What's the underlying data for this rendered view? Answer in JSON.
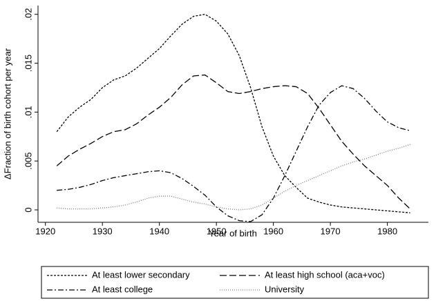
{
  "chart_data": {
    "type": "line",
    "xlabel": "Year of birth",
    "ylabel": "ΔFraction of birth cohort per year",
    "x": [
      1922,
      1924,
      1926,
      1928,
      1930,
      1932,
      1934,
      1936,
      1938,
      1940,
      1942,
      1944,
      1946,
      1948,
      1950,
      1952,
      1954,
      1956,
      1958,
      1960,
      1962,
      1964,
      1966,
      1968,
      1970,
      1972,
      1974,
      1976,
      1978,
      1980,
      1982,
      1984
    ],
    "series": [
      {
        "name": "At least lower secondary",
        "color": "#000000",
        "dash": "short",
        "values": [
          0.008,
          0.0095,
          0.0105,
          0.0113,
          0.0125,
          0.0133,
          0.0137,
          0.0145,
          0.0155,
          0.0165,
          0.0178,
          0.019,
          0.0198,
          0.02,
          0.0193,
          0.018,
          0.0158,
          0.0125,
          0.0085,
          0.0055,
          0.0035,
          0.0023,
          0.0012,
          0.0008,
          0.0005,
          0.0003,
          0.0002,
          0.0001,
          0,
          -0.0001,
          -0.0002,
          -0.0003
        ]
      },
      {
        "name": "At least high school (aca+voc)",
        "color": "#000000",
        "dash": "long",
        "values": [
          0.0045,
          0.0055,
          0.0062,
          0.0068,
          0.0075,
          0.008,
          0.0082,
          0.0088,
          0.0097,
          0.0105,
          0.0115,
          0.0128,
          0.0137,
          0.0138,
          0.013,
          0.0121,
          0.0119,
          0.0121,
          0.0124,
          0.0126,
          0.0127,
          0.0126,
          0.0119,
          0.0104,
          0.0087,
          0.007,
          0.0057,
          0.0045,
          0.0035,
          0.0025,
          0.0012,
          0.0001
        ]
      },
      {
        "name": "At least college",
        "color": "#000000",
        "dash": "dashdot",
        "values": [
          0.002,
          0.0021,
          0.0023,
          0.0026,
          0.003,
          0.0033,
          0.0035,
          0.0037,
          0.0039,
          0.004,
          0.0038,
          0.0032,
          0.0024,
          0.0015,
          0.0003,
          -0.0006,
          -0.0011,
          -0.0012,
          -0.0005,
          0.0012,
          0.0035,
          0.006,
          0.0085,
          0.0107,
          0.012,
          0.0127,
          0.0124,
          0.0114,
          0.0101,
          0.009,
          0.0084,
          0.0081
        ]
      },
      {
        "name": "University",
        "color": "#777777",
        "dash": "dot",
        "values": [
          0.0002,
          0.0001,
          0.0001,
          0.0001,
          0.0002,
          0.0003,
          0.0005,
          0.0008,
          0.0012,
          0.0014,
          0.0014,
          0.0011,
          0.0008,
          0.0006,
          0.0003,
          0.0001,
          0,
          0.0001,
          0.0005,
          0.0012,
          0.0019,
          0.0025,
          0.003,
          0.0035,
          0.004,
          0.0045,
          0.0049,
          0.0052,
          0.0056,
          0.006,
          0.0063,
          0.0067
        ]
      }
    ],
    "xlim": [
      1918.7,
      1987.2
    ],
    "ylim": [
      -0.00127,
      0.0209
    ],
    "xticks": [
      1920,
      1930,
      1940,
      1950,
      1960,
      1970,
      1980
    ],
    "yticks": [
      0,
      {
        "value": 0.005,
        "label": ".005"
      },
      {
        "value": 0.01,
        "label": ".01"
      },
      {
        "value": 0.015,
        "label": ".015"
      },
      {
        "value": 0.02,
        "label": ".02"
      }
    ]
  }
}
